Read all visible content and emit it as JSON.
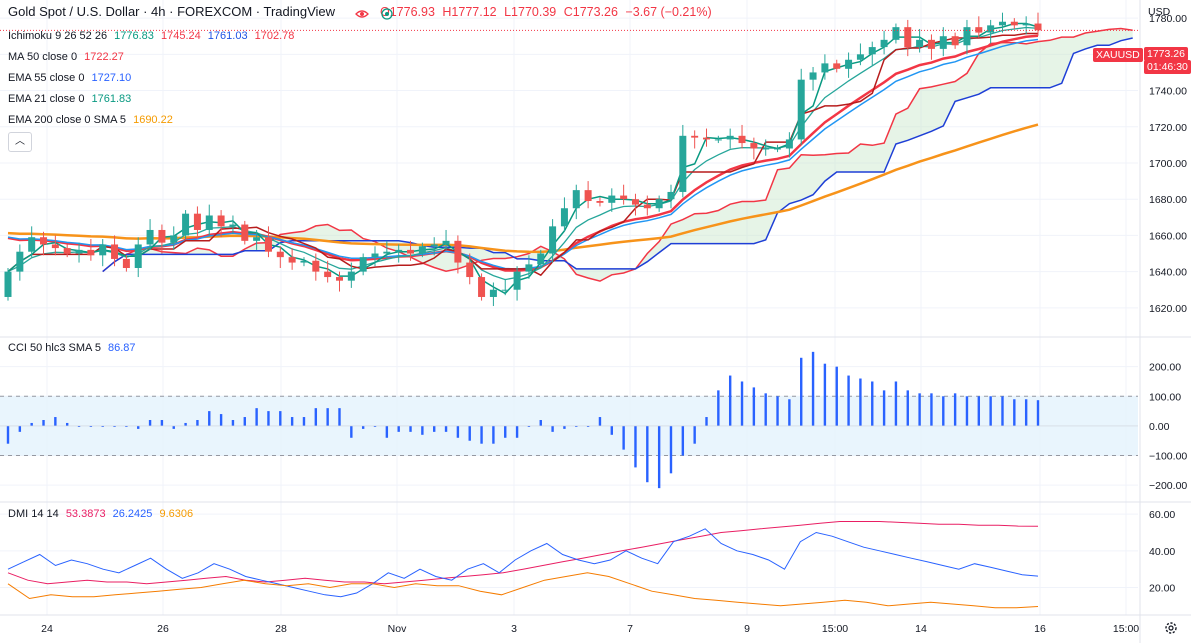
{
  "header": {
    "title": "Gold Spot / U.S. Dollar · 4h · FOREXCOM · TradingView",
    "ohlc": {
      "o": "O1776.93",
      "h": "H1777.12",
      "l": "L1770.39",
      "c": "C1773.26",
      "chg": "−3.67 (−0.21%)"
    }
  },
  "indicators": {
    "ichimoku": {
      "label": "Ichimoku 9 26 52 26",
      "v1": "1776.83",
      "v2": "1745.24",
      "v3": "1761.03",
      "v4": "1702.78"
    },
    "ma50": {
      "label": "MA 50 close 0",
      "value": "1722.27"
    },
    "ema55": {
      "label": "EMA 55 close 0",
      "value": "1727.10"
    },
    "ema21": {
      "label": "EMA 21 close 0",
      "value": "1761.83"
    },
    "ema200": {
      "label": "EMA 200 close 0 SMA 5",
      "value": "1690.22"
    },
    "cci": {
      "label": "CCI 50 hlc3 SMA 5",
      "value": "86.87"
    },
    "dmi": {
      "label": "DMI 14 14",
      "v1": "53.3873",
      "v2": "26.2425",
      "v3": "9.6306"
    }
  },
  "price_axis": {
    "currency": "USD",
    "symbol_tag": "XAUUSD",
    "last_price": "1773.26",
    "countdown": "01:46:30"
  },
  "colors": {
    "up": "#26a69a",
    "down": "#ef5350",
    "tenkan": "#089981",
    "kijun": "#b71c1c",
    "span_a": "#f23645",
    "span_b": "#1e3fd6",
    "ema21": "#26a69a",
    "ema55": "#2196f3",
    "ma50": "#f23645",
    "ema200": "#f7931a",
    "cci": "#2962ff",
    "dmi_plus": "#2962ff",
    "dmi_minus": "#f57c00",
    "adx": "#e91e63"
  },
  "chart_data": [
    {
      "type": "candlestick",
      "name": "Gold Spot / U.S. Dollar 4h",
      "y_ticks": [
        1620,
        1640,
        1660,
        1680,
        1700,
        1720,
        1740,
        1760,
        1780
      ],
      "ylim": [
        1605,
        1790
      ],
      "x_ticks": [
        "24",
        "26",
        "28",
        "Nov",
        "3",
        "7",
        "9",
        "15:00",
        "14",
        "16",
        "15:00"
      ],
      "open": [
        1626,
        1640,
        1651,
        1659,
        1655,
        1653,
        1650,
        1652,
        1649,
        1655,
        1647,
        1642,
        1655,
        1663,
        1656,
        1660,
        1672,
        1663,
        1671,
        1665,
        1666,
        1657,
        1659,
        1651,
        1648,
        1645,
        1646,
        1640,
        1637,
        1635,
        1640,
        1648,
        1650,
        1651,
        1652,
        1650,
        1654,
        1655,
        1657,
        1645,
        1637,
        1626,
        1630,
        1630,
        1640,
        1644,
        1650,
        1665,
        1675,
        1685,
        1679,
        1678,
        1682,
        1680,
        1677,
        1675,
        1680,
        1684,
        1715,
        1714,
        1713,
        1713,
        1715,
        1711,
        1708,
        1708,
        1708,
        1713,
        1746,
        1750,
        1755,
        1752,
        1757,
        1760,
        1764,
        1768,
        1775,
        1764,
        1768,
        1763,
        1770,
        1765,
        1775,
        1772,
        1776,
        1778,
        1776,
        1777
      ],
      "close": [
        1640,
        1651,
        1659,
        1655,
        1653,
        1650,
        1652,
        1649,
        1655,
        1647,
        1642,
        1655,
        1663,
        1656,
        1660,
        1672,
        1663,
        1671,
        1665,
        1666,
        1657,
        1659,
        1651,
        1648,
        1645,
        1646,
        1640,
        1637,
        1635,
        1640,
        1648,
        1650,
        1651,
        1652,
        1650,
        1654,
        1655,
        1657,
        1645,
        1637,
        1626,
        1630,
        1630,
        1640,
        1644,
        1650,
        1665,
        1675,
        1685,
        1679,
        1678,
        1682,
        1680,
        1677,
        1675,
        1680,
        1684,
        1715,
        1714,
        1713,
        1713,
        1715,
        1711,
        1708,
        1708,
        1708,
        1713,
        1746,
        1750,
        1755,
        1752,
        1757,
        1760,
        1764,
        1768,
        1775,
        1764,
        1768,
        1763,
        1770,
        1765,
        1775,
        1772,
        1776,
        1778,
        1776,
        1777,
        1773.26
      ]
    },
    {
      "type": "bar",
      "name": "CCI 50 hlc3 SMA 5",
      "y_ticks": [
        -200,
        -100,
        0,
        100,
        200
      ],
      "ylim": [
        -250,
        290
      ],
      "band": [
        -100,
        100
      ],
      "values": [
        -60,
        -20,
        10,
        20,
        30,
        10,
        0,
        0,
        0,
        0,
        0,
        -10,
        20,
        20,
        -10,
        10,
        20,
        50,
        40,
        20,
        30,
        60,
        50,
        50,
        30,
        30,
        60,
        60,
        60,
        -40,
        -10,
        0,
        -40,
        -20,
        -20,
        -30,
        -20,
        -20,
        -40,
        -50,
        -60,
        -60,
        -40,
        -40,
        0,
        20,
        -20,
        -10,
        0,
        0,
        30,
        -30,
        -80,
        -140,
        -190,
        -210,
        -160,
        -100,
        -60,
        30,
        120,
        170,
        150,
        130,
        110,
        100,
        90,
        230,
        250,
        210,
        200,
        170,
        160,
        150,
        120,
        150,
        120,
        110,
        110,
        100,
        110,
        100,
        100,
        100,
        100,
        90,
        90,
        86.87
      ]
    },
    {
      "type": "line",
      "name": "DMI 14 14",
      "y_ticks": [
        20,
        40,
        60
      ],
      "ylim": [
        5,
        65
      ],
      "series": [
        {
          "name": "53.3873",
          "values": [
            28,
            24,
            22,
            23,
            24,
            23,
            23,
            22,
            23,
            24,
            25,
            26,
            24,
            23,
            24,
            25,
            24,
            23,
            23,
            22,
            23,
            24,
            25,
            26,
            27,
            28,
            30,
            32,
            34,
            36,
            38,
            40,
            42,
            44,
            46,
            48,
            50,
            51,
            52,
            53,
            54,
            55,
            56,
            56,
            56,
            55.5,
            55,
            54.5,
            54.5,
            54,
            54,
            53.5,
            53.3873
          ]
        },
        {
          "name": "26.2425",
          "values": [
            30,
            34,
            38,
            32,
            35,
            33,
            30,
            28,
            32,
            36,
            30,
            25,
            28,
            33,
            30,
            26,
            24,
            22,
            20,
            18,
            16,
            15,
            17,
            22,
            28,
            25,
            30,
            26,
            24,
            30,
            33,
            28,
            35,
            40,
            44,
            38,
            35,
            33,
            35,
            40,
            36,
            33,
            45,
            48,
            52,
            44,
            40,
            38,
            35,
            30,
            45,
            50,
            48,
            45,
            42,
            40,
            38,
            36,
            34,
            32,
            30,
            33,
            31,
            29,
            27,
            26.2425
          ]
        },
        {
          "name": "9.6306",
          "values": [
            22,
            14,
            16,
            15,
            15,
            16,
            17,
            18,
            19,
            20,
            22,
            24,
            22,
            21,
            22,
            20,
            22,
            22,
            20,
            22,
            21,
            21,
            18,
            16,
            20,
            24,
            26,
            28,
            26,
            22,
            18,
            16,
            14,
            13,
            12,
            11,
            10,
            11,
            12,
            13,
            12,
            10,
            11,
            12,
            11,
            10,
            9,
            9,
            9.6306
          ]
        }
      ]
    }
  ]
}
